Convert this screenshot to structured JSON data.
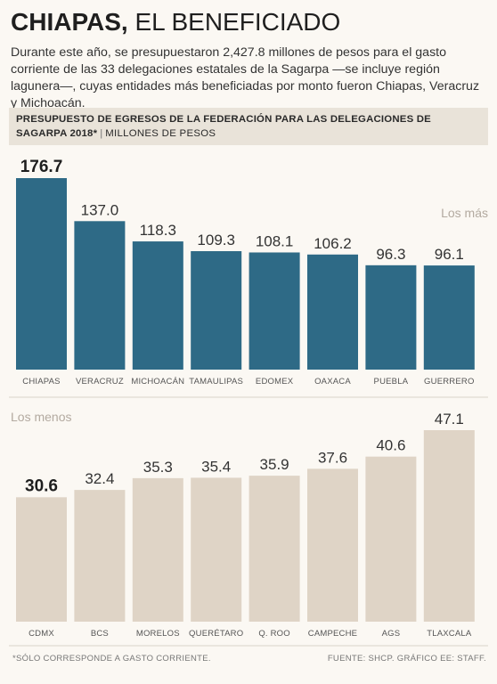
{
  "header": {
    "title_bold": "CHIAPAS,",
    "title_rest": " EL BENEFICIADO",
    "intro": "Durante este año, se presupuestaron 2,427.8 millones de pesos para el gasto corriente de las 33 delegaciones estatales de la Sagarpa —se incluye región lagunera—, cuyas entidades más beneficiadas por monto fueron Chiapas, Veracruz y Michoacán."
  },
  "band": {
    "title": "PRESUPUESTO DE EGRESOS DE LA FEDERACIÓN PARA LAS DELEGACIONES DE SAGARPA 2018*",
    "separator": "|",
    "unit": "MILLONES DE PESOS"
  },
  "colors": {
    "top_bars": "#2e6a86",
    "bottom_bars": "#dfd4c6",
    "background": "#fbf8f3",
    "band": "#e9e3d9"
  },
  "chart_data": [
    {
      "type": "bar",
      "label": "Los más",
      "categories": [
        "CHIAPAS",
        "VERACRUZ",
        "MICHOACÁN",
        "TAMAULIPAS",
        "EDOMEX",
        "OAXACA",
        "PUEBLA",
        "GUERRERO"
      ],
      "values": [
        176.7,
        137.0,
        118.3,
        109.3,
        108.1,
        106.2,
        96.3,
        96.1
      ],
      "value_labels": [
        "176.7",
        "137.0",
        "118.3",
        "109.3",
        "108.1",
        "106.2",
        "96.3",
        "96.1"
      ],
      "ylim": [
        0,
        180
      ]
    },
    {
      "type": "bar",
      "label": "Los menos",
      "categories": [
        "CDMX",
        "BCS",
        "MORELOS",
        "QUERÉTARO",
        "Q. ROO",
        "CAMPECHE",
        "AGS",
        "TLAXCALA"
      ],
      "values": [
        30.6,
        32.4,
        35.3,
        35.4,
        35.9,
        37.6,
        40.6,
        47.1
      ],
      "value_labels": [
        "30.6",
        "32.4",
        "35.3",
        "35.4",
        "35.9",
        "37.6",
        "40.6",
        "47.1"
      ],
      "ylim": [
        0,
        48
      ]
    }
  ],
  "footer": {
    "note": "*SÓLO CORRESPONDE A GASTO CORRIENTE.",
    "source": "FUENTE: SHCP. GRÁFICO EE: STAFF."
  }
}
